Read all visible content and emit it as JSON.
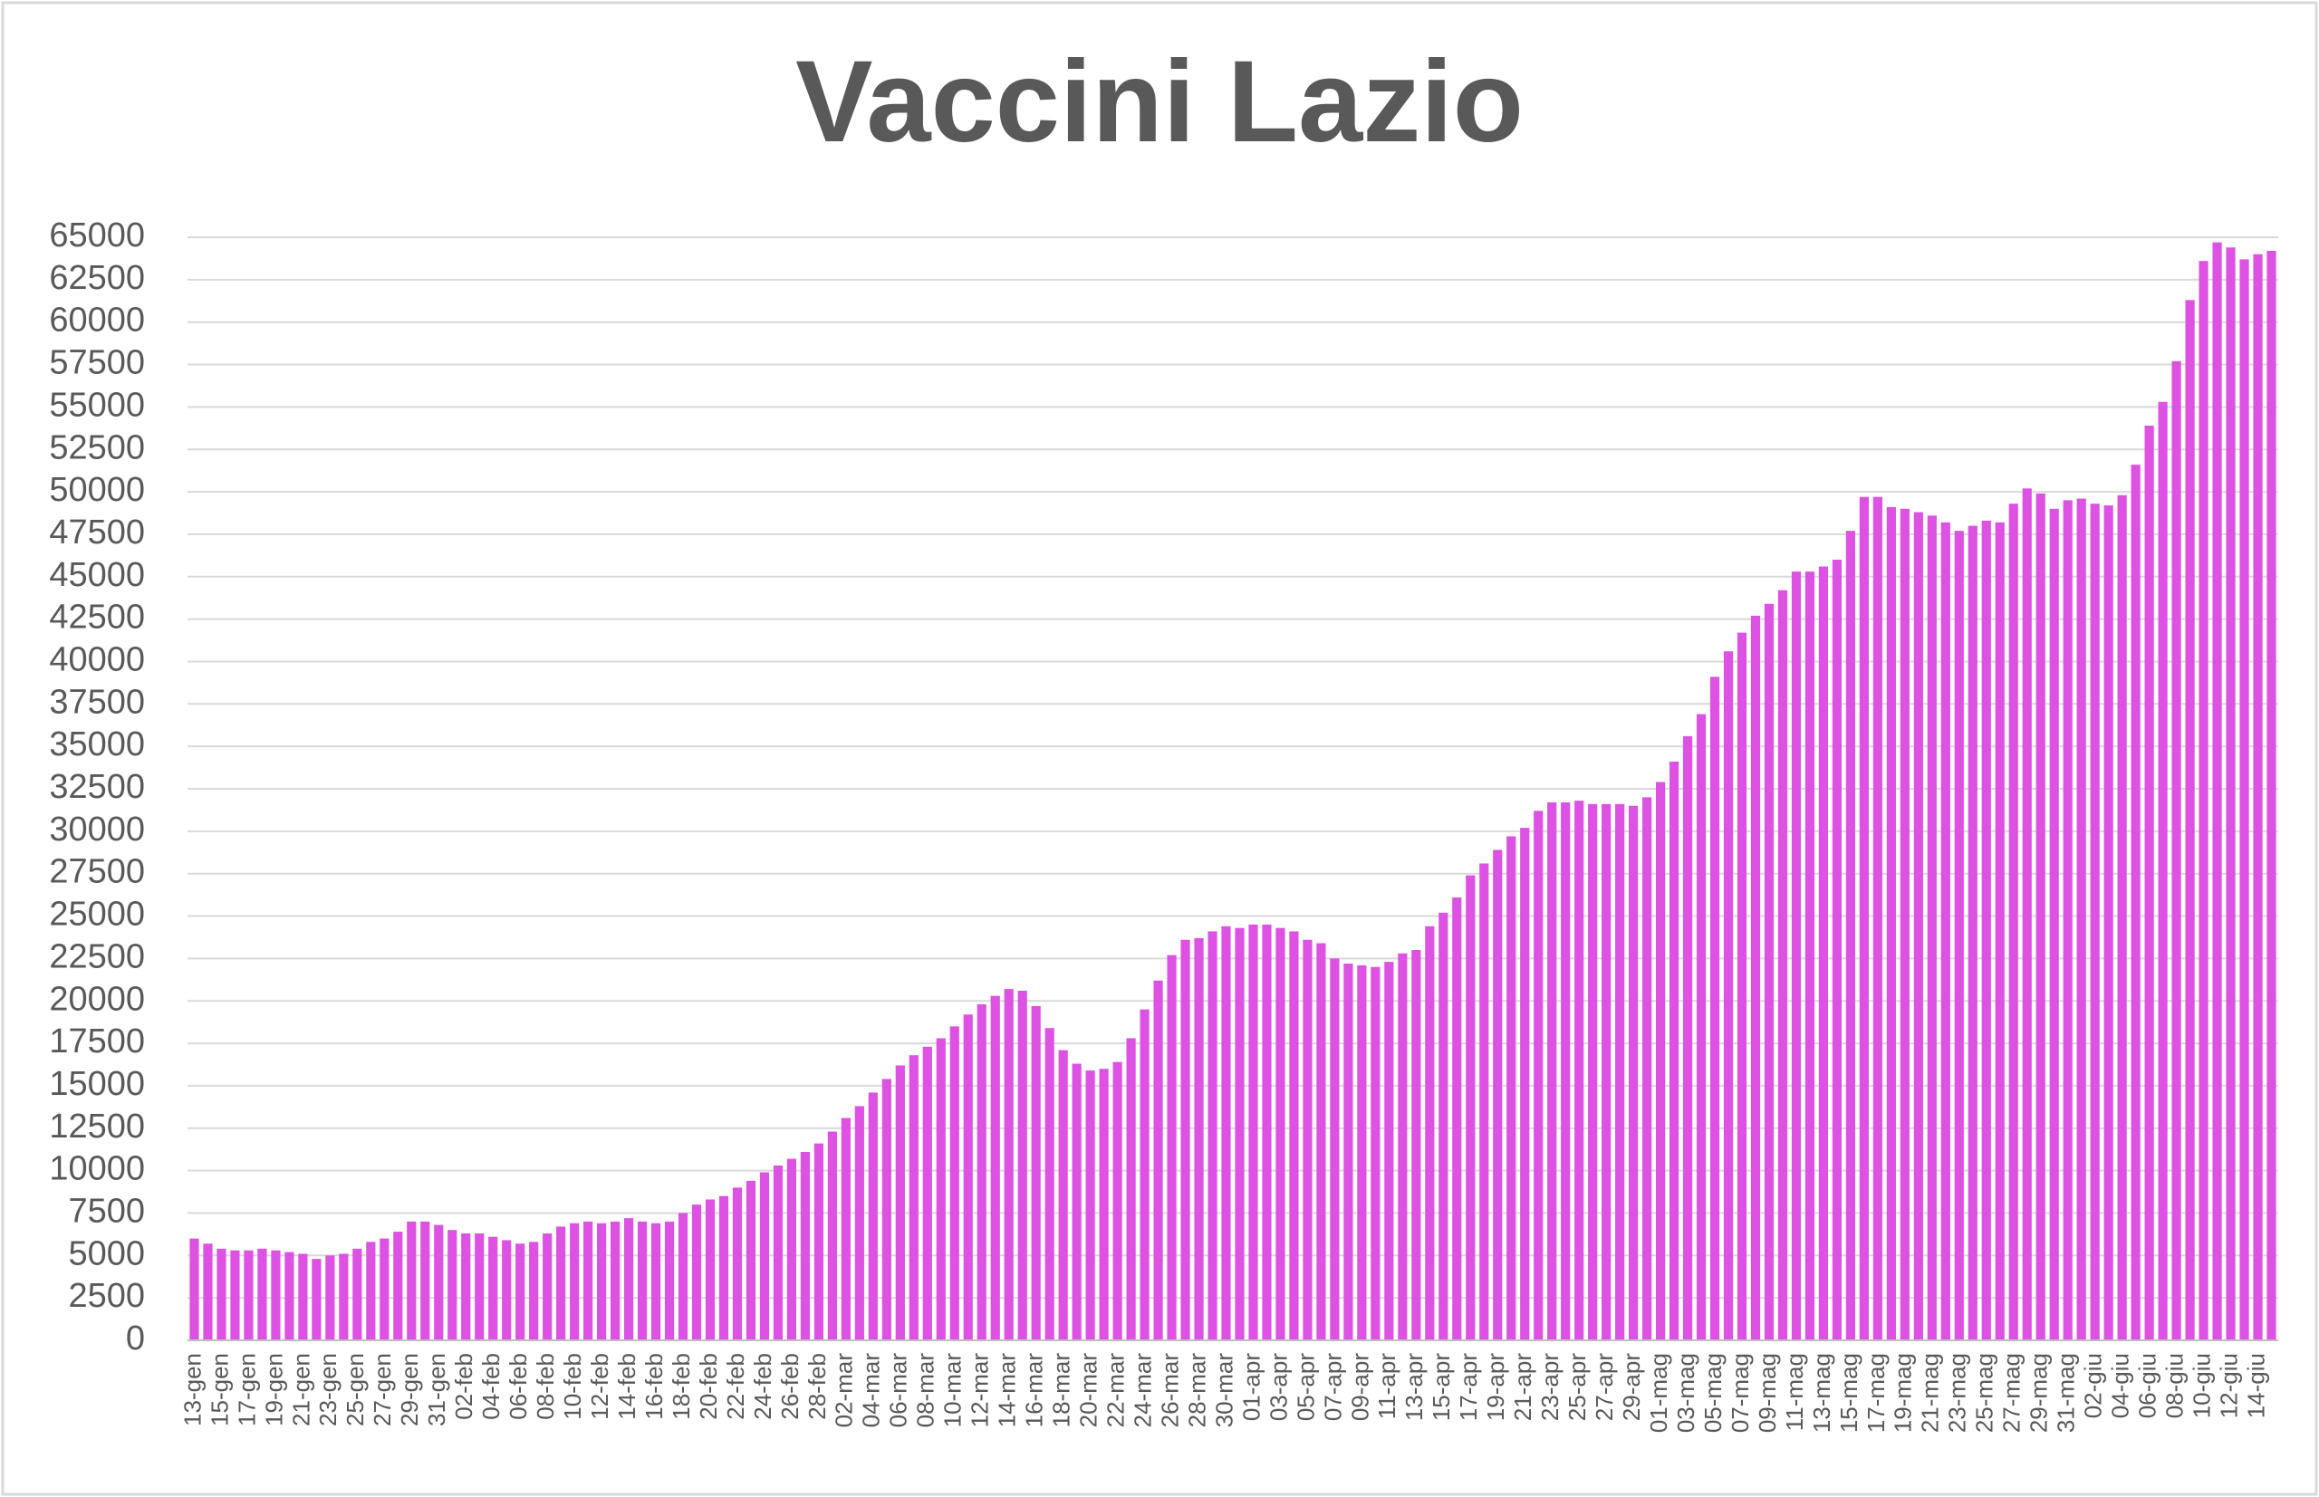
{
  "chart_data": {
    "type": "bar",
    "title": "Vaccini Lazio",
    "categories": [
      "13-gen",
      null,
      "15-gen",
      null,
      "17-gen",
      null,
      "19-gen",
      null,
      "21-gen",
      null,
      "23-gen",
      null,
      "25-gen",
      null,
      "27-gen",
      null,
      "29-gen",
      null,
      "31-gen",
      null,
      "02-feb",
      null,
      "04-feb",
      null,
      "06-feb",
      null,
      "08-feb",
      null,
      "10-feb",
      null,
      "12-feb",
      null,
      "14-feb",
      null,
      "16-feb",
      null,
      "18-feb",
      null,
      "20-feb",
      null,
      "22-feb",
      null,
      "24-feb",
      null,
      "26-feb",
      null,
      "28-feb",
      null,
      "02-mar",
      null,
      "04-mar",
      null,
      "06-mar",
      null,
      "08-mar",
      null,
      "10-mar",
      null,
      "12-mar",
      null,
      "14-mar",
      null,
      "16-mar",
      null,
      "18-mar",
      null,
      "20-mar",
      null,
      "22-mar",
      null,
      "24-mar",
      null,
      "26-mar",
      null,
      "28-mar",
      null,
      "30-mar",
      null,
      "01-apr",
      null,
      "03-apr",
      null,
      "05-apr",
      null,
      "07-apr",
      null,
      "09-apr",
      null,
      "11-apr",
      null,
      "13-apr",
      null,
      "15-apr",
      null,
      "17-apr",
      null,
      "19-apr",
      null,
      "21-apr",
      null,
      "23-apr",
      null,
      "25-apr",
      null,
      "27-apr",
      null,
      "29-apr",
      null,
      "01-mag",
      null,
      "03-mag",
      null,
      "05-mag",
      null,
      "07-mag",
      null,
      "09-mag",
      null,
      "11-mag",
      null,
      "13-mag",
      null,
      "15-mag",
      null,
      "17-mag",
      null,
      "19-mag",
      null,
      "21-mag",
      null,
      "23-mag",
      null,
      "25-mag",
      null,
      "27-mag",
      null,
      "29-mag",
      null,
      "31-mag",
      null,
      "02-giu",
      null,
      "04-giu",
      null,
      "06-giu",
      null,
      "08-giu",
      null,
      "10-giu",
      null,
      "12-giu",
      null,
      "14-giu",
      null
    ],
    "values": [
      6000,
      5700,
      5400,
      5300,
      5300,
      5400,
      5300,
      5200,
      5100,
      4800,
      5000,
      5100,
      5400,
      5800,
      6000,
      6400,
      7000,
      7000,
      6800,
      6500,
      6300,
      6300,
      6100,
      5900,
      5700,
      5800,
      6300,
      6700,
      6900,
      7000,
      6900,
      7000,
      7200,
      7000,
      6900,
      7000,
      7500,
      8000,
      8300,
      8500,
      9000,
      9400,
      9900,
      10300,
      10700,
      11100,
      11600,
      12300,
      13100,
      13800,
      14600,
      15400,
      16200,
      16800,
      17300,
      17800,
      18500,
      19200,
      19800,
      20300,
      20700,
      20600,
      19700,
      18400,
      17100,
      16300,
      15900,
      16000,
      16400,
      17800,
      19500,
      21200,
      22700,
      23600,
      23700,
      24100,
      24400,
      24300,
      24500,
      24500,
      24300,
      24100,
      23600,
      23400,
      22500,
      22200,
      22100,
      22000,
      22300,
      22800,
      23000,
      24400,
      25200,
      26100,
      27400,
      28100,
      28900,
      29700,
      30200,
      31200,
      31700,
      31700,
      31800,
      31600,
      31600,
      31600,
      31500,
      32000,
      32900,
      34100,
      35600,
      36900,
      39100,
      40600,
      41700,
      42700,
      43400,
      44200,
      45300,
      45300,
      45600,
      46000,
      47700,
      49700,
      49700,
      49100,
      49000,
      48800,
      48600,
      48200,
      47700,
      48000,
      48300,
      48200,
      49300,
      50200,
      49900,
      49000,
      49500,
      49600,
      49300,
      49200,
      49800,
      51600,
      53900,
      55300,
      57700,
      61300,
      63600,
      64700,
      64400,
      63700,
      64000,
      64200
    ],
    "color": "#dd52e3",
    "ylim": [
      0,
      65000
    ],
    "yticks": [
      0,
      2500,
      5000,
      7500,
      10000,
      12500,
      15000,
      17500,
      20000,
      22500,
      25000,
      27500,
      30000,
      32500,
      35000,
      37500,
      40000,
      42500,
      45000,
      47500,
      50000,
      52500,
      55000,
      57500,
      60000,
      62500,
      65000
    ],
    "grid": true
  }
}
